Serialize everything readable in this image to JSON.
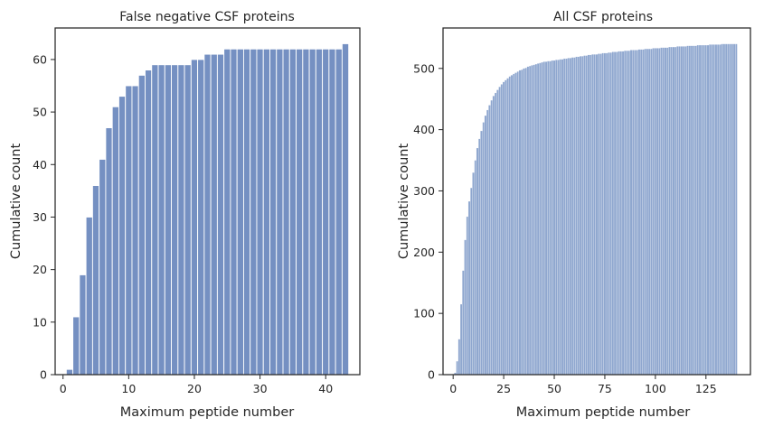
{
  "chart_data": [
    {
      "type": "bar",
      "title": "False negative CSF proteins",
      "xlabel": "Maximum peptide number",
      "ylabel": "Cumulative count",
      "xlim": [
        -1.2,
        45.2
      ],
      "ylim": [
        0,
        66
      ],
      "xticks": [
        0,
        10,
        20,
        30,
        40
      ],
      "yticks": [
        0,
        10,
        20,
        30,
        40,
        50,
        60
      ],
      "bar_color": "#7590c2",
      "bin_start": 1,
      "bin_width": 1,
      "values": [
        1,
        11,
        19,
        30,
        36,
        41,
        47,
        51,
        53,
        55,
        55,
        57,
        58,
        59,
        59,
        59,
        59,
        59,
        59,
        60,
        60,
        61,
        61,
        61,
        62,
        62,
        62,
        62,
        62,
        62,
        62,
        62,
        62,
        62,
        62,
        62,
        62,
        62,
        62,
        62,
        62,
        62,
        63
      ]
    },
    {
      "type": "bar",
      "title": "All CSF proteins",
      "xlabel": "Maximum peptide number",
      "ylabel": "Cumulative count",
      "xlim": [
        -5,
        147
      ],
      "ylim": [
        0,
        566
      ],
      "xticks": [
        0,
        25,
        50,
        75,
        100,
        125
      ],
      "yticks": [
        0,
        100,
        200,
        300,
        400,
        500
      ],
      "bar_color": "#8fa7cf",
      "bin_start": 1,
      "bin_width": 1,
      "values": [
        3,
        22,
        58,
        115,
        170,
        220,
        258,
        283,
        305,
        330,
        350,
        370,
        385,
        398,
        412,
        423,
        432,
        440,
        448,
        455,
        460,
        465,
        470,
        474,
        478,
        481,
        484,
        487,
        489,
        491,
        493,
        495,
        497,
        498,
        500,
        501,
        503,
        504,
        505,
        506,
        507,
        508,
        509,
        510,
        511,
        511,
        512,
        512,
        513,
        513,
        514,
        514,
        515,
        515,
        516,
        516,
        517,
        517,
        518,
        518,
        519,
        519,
        520,
        520,
        521,
        521,
        522,
        522,
        523,
        523,
        523,
        524,
        524,
        525,
        525,
        525,
        526,
        526,
        527,
        527,
        527,
        528,
        528,
        528,
        529,
        529,
        529,
        530,
        530,
        530,
        530,
        531,
        531,
        531,
        532,
        532,
        532,
        532,
        533,
        533,
        533,
        533,
        534,
        534,
        534,
        534,
        535,
        535,
        535,
        535,
        536,
        536,
        536,
        536,
        536,
        537,
        537,
        537,
        537,
        537,
        538,
        538,
        538,
        538,
        538,
        538,
        539,
        539,
        539,
        539,
        539,
        539,
        540,
        540,
        540,
        540,
        540,
        540,
        540,
        540
      ]
    }
  ]
}
